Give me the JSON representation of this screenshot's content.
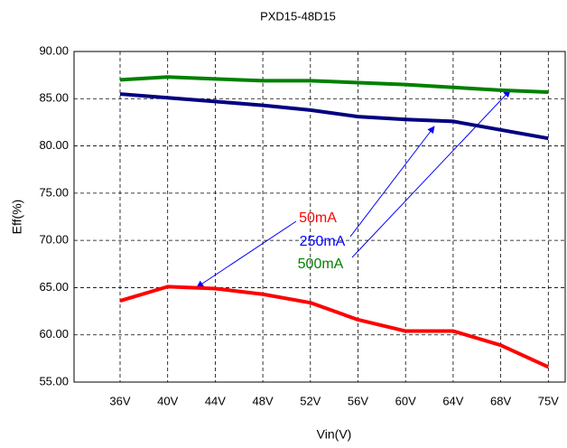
{
  "chart_data": {
    "type": "line",
    "title": "PXD15-48D15",
    "x_label": "Vin(V)",
    "y_label": "Eff(%)",
    "categories": [
      "36V",
      "40V",
      "44V",
      "48V",
      "52V",
      "56V",
      "60V",
      "64V",
      "68V",
      "75V"
    ],
    "series": [
      {
        "name": "50mA",
        "color": "#ff0000",
        "values": [
          63.6,
          65.1,
          64.9,
          64.3,
          63.4,
          61.6,
          60.4,
          60.4,
          58.9,
          56.6
        ]
      },
      {
        "name": "250mA",
        "color": "#000080",
        "label_color": "#0000ff",
        "values": [
          85.5,
          85.1,
          84.7,
          84.3,
          83.8,
          83.1,
          82.8,
          82.6,
          81.7,
          80.8
        ]
      },
      {
        "name": "500mA",
        "color": "#008000",
        "values": [
          87.0,
          87.3,
          87.1,
          86.9,
          86.9,
          86.7,
          86.5,
          86.2,
          85.9,
          85.7
        ]
      }
    ],
    "ylim": [
      55,
      90
    ],
    "yticks": [
      {
        "value": 55,
        "label": "55.00"
      },
      {
        "value": 60,
        "label": "60.00"
      },
      {
        "value": 65,
        "label": "65.00"
      },
      {
        "value": 70,
        "label": "70.00"
      },
      {
        "value": 75,
        "label": "75.00"
      },
      {
        "value": 80,
        "label": "80.00"
      },
      {
        "value": 85,
        "label": "85.00"
      },
      {
        "value": 90,
        "label": "90.00"
      }
    ],
    "grid": true
  }
}
